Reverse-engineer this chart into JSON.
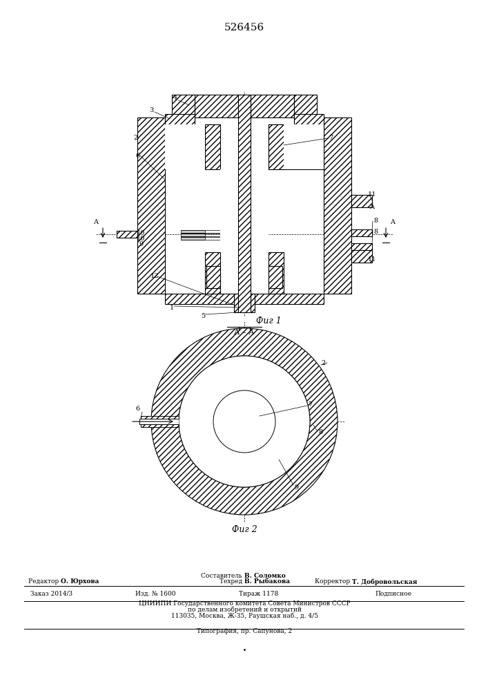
{
  "patent_number": "526456",
  "background_color": "#ffffff",
  "line_color": "#000000",
  "fig1_caption": "Фиг 1",
  "fig2_caption": "Фиг 2",
  "footer": {
    "composer": "Составитель В. Соломко",
    "editor": "Редактор О. Юрхова",
    "tech": "Техред В. Рыбакова",
    "corrector": "Корректор Т. Добровольская",
    "order": "Заказ 2014/3",
    "izd": "Изд. № 1600",
    "tirazh": "Тираж 1178",
    "podpisnoe": "Подписное",
    "tsniip": "ЦНИИПИ Государственного комитета Совета Министров СССР",
    "po_delam": "по делам изобретений и открытий",
    "address": "113035, Москва, Ж-35, Раушская наб., д. 4/5",
    "tipografia": "Типография, пр. Сапунова, 2"
  }
}
